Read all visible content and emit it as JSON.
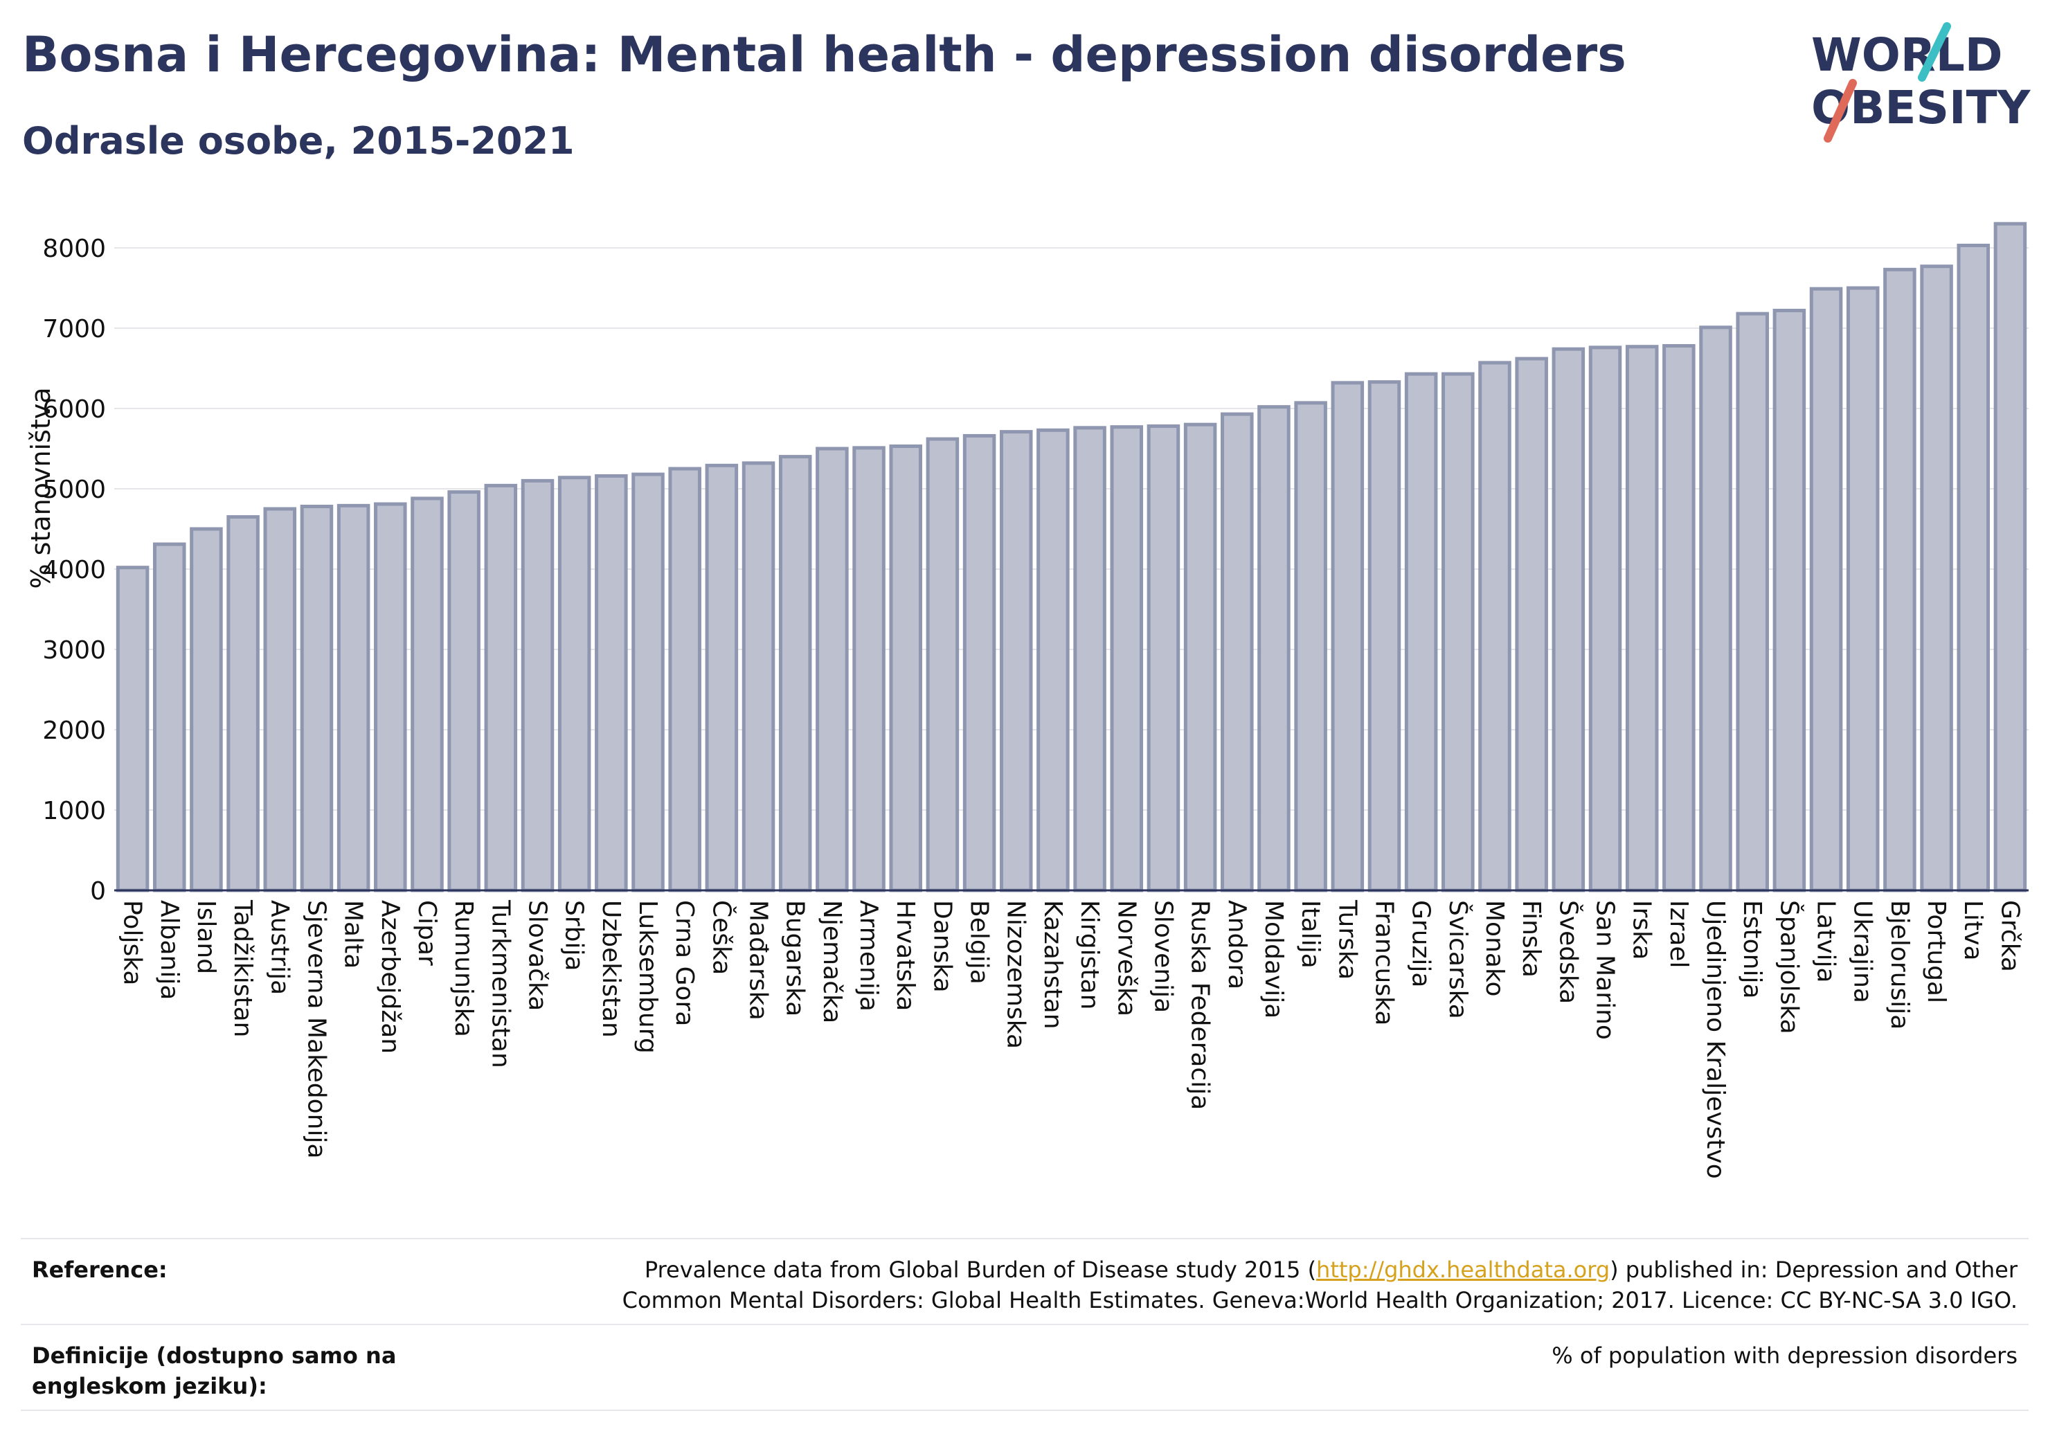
{
  "title": "Bosna i Hercegovina: Mental health - depression disorders",
  "subtitle": "Odrasle osobe, 2015-2021",
  "logo": {
    "line1": "WORLD",
    "line2": "OBESITY",
    "accent_red": "#e06a5a",
    "accent_teal": "#3bbfc4",
    "navy": "#2b355e"
  },
  "colors": {
    "bar_fill": "#bcc0cf",
    "bar_stroke": "#8f96b0",
    "text": "#2b355e",
    "grid": "#e6e6ea"
  },
  "chart_data": {
    "type": "bar",
    "title": "Bosna i Hercegovina: Mental health - depression disorders",
    "subtitle": "Odrasle osobe, 2015-2021",
    "xlabel": "",
    "ylabel": "% stanovništva",
    "ylim": [
      0,
      8500
    ],
    "yticks": [
      0,
      1000,
      2000,
      3000,
      4000,
      5000,
      6000,
      7000,
      8000
    ],
    "grid": true,
    "categories": [
      "Poljska",
      "Albanija",
      "Island",
      "Tadžikistan",
      "Austrija",
      "Sjeverna Makedonija",
      "Malta",
      "Azerbejdžan",
      "Cipar",
      "Rumunjska",
      "Turkmenistan",
      "Slovačka",
      "Srbija",
      "Uzbekistan",
      "Luksemburg",
      "Crna Gora",
      "Češka",
      "Mađarska",
      "Bugarska",
      "Njemačka",
      "Armenija",
      "Hrvatska",
      "Danska",
      "Belgija",
      "Nizozemska",
      "Kazahstan",
      "Kirgistan",
      "Norveška",
      "Slovenija",
      "Ruska Federacija",
      "Andora",
      "Moldavija",
      "Italija",
      "Turska",
      "Francuska",
      "Gruzija",
      "Švicarska",
      "Monako",
      "Finska",
      "Švedska",
      "San Marino",
      "Irska",
      "Izrael",
      "Ujedinjeno Kraljevstvo",
      "Estonija",
      "Španjolska",
      "Latvija",
      "Ukrajina",
      "Bjelorusija",
      "Portugal",
      "Litva",
      "Grčka"
    ],
    "values": [
      4020,
      4310,
      4500,
      4650,
      4750,
      4780,
      4790,
      4810,
      4880,
      4960,
      5040,
      5100,
      5140,
      5160,
      5180,
      5250,
      5290,
      5320,
      5400,
      5500,
      5510,
      5530,
      5620,
      5660,
      5710,
      5730,
      5760,
      5770,
      5780,
      5800,
      5930,
      6020,
      6070,
      6320,
      6330,
      6430,
      6430,
      6570,
      6620,
      6740,
      6760,
      6770,
      6780,
      7010,
      7180,
      7220,
      7490,
      7500,
      7730,
      7770,
      8030,
      8300
    ]
  },
  "reference": {
    "label": "Reference:",
    "text_before": "Prevalence data from Global Burden of Disease study 2015 (",
    "link": "http://ghdx.healthdata.org",
    "text_after": ") published in: Depression and Other Common Mental Disorders: Global Health Estimates. Geneva:World Health Organization; 2017. Licence: CC BY-NC-SA 3.0 IGO."
  },
  "definition": {
    "label": "Definicije (dostupno samo na engleskom jeziku):",
    "text": "% of population with depression disorders"
  }
}
